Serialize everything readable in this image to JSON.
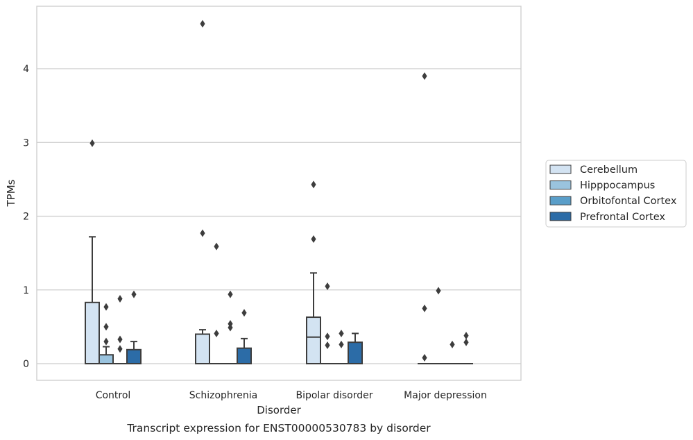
{
  "chart_data": {
    "type": "box",
    "title": "",
    "caption": "Transcript expression for ENST00000530783 by disorder",
    "xlabel": "Disorder",
    "ylabel": "TPMs",
    "ylim": [
      -0.22,
      4.85
    ],
    "yticks": [
      0,
      1,
      2,
      3,
      4
    ],
    "grid": "horizontal",
    "legend_position": "right",
    "categories": [
      "Control",
      "Schizophrenia",
      "Bipolar disorder",
      "Major depression"
    ],
    "series": [
      {
        "name": "Cerebellum",
        "color": "#d3e3f2",
        "boxes": [
          {
            "q1": 0,
            "median": 0,
            "q3": 0.83,
            "whisker_low": 0,
            "whisker_high": 1.72,
            "outliers": [
              2.99
            ]
          },
          {
            "q1": 0,
            "median": 0,
            "q3": 0.4,
            "whisker_low": 0,
            "whisker_high": 0.46,
            "outliers": [
              4.61,
              1.77
            ]
          },
          {
            "q1": 0,
            "median": 0.36,
            "q3": 0.63,
            "whisker_low": 0,
            "whisker_high": 1.23,
            "outliers": [
              2.43,
              1.69
            ]
          },
          {
            "q1": 0,
            "median": 0,
            "q3": 0,
            "whisker_low": 0,
            "whisker_high": 0,
            "outliers": [
              3.9,
              0.75,
              0.08
            ]
          }
        ]
      },
      {
        "name": "Hipppocampus",
        "color": "#9ac3de",
        "boxes": [
          {
            "q1": 0,
            "median": 0,
            "q3": 0.12,
            "whisker_low": 0,
            "whisker_high": 0.23,
            "outliers": [
              0.77,
              0.5,
              0.3
            ]
          },
          {
            "q1": 0,
            "median": 0,
            "q3": 0,
            "whisker_low": 0,
            "whisker_high": 0,
            "outliers": [
              1.59,
              0.41
            ]
          },
          {
            "q1": 0,
            "median": 0,
            "q3": 0,
            "whisker_low": 0,
            "whisker_high": 0,
            "outliers": [
              1.05,
              0.37,
              0.25
            ]
          },
          {
            "q1": 0,
            "median": 0,
            "q3": 0,
            "whisker_low": 0,
            "whisker_high": 0,
            "outliers": [
              0.99
            ]
          }
        ]
      },
      {
        "name": "Orbitofontal Cortex",
        "color": "#5a9ec9",
        "boxes": [
          {
            "q1": 0,
            "median": 0,
            "q3": 0,
            "whisker_low": 0,
            "whisker_high": 0,
            "outliers": [
              0.88,
              0.33,
              0.2
            ]
          },
          {
            "q1": 0,
            "median": 0,
            "q3": 0,
            "whisker_low": 0,
            "whisker_high": 0,
            "outliers": [
              0.94,
              0.54,
              0.49
            ]
          },
          {
            "q1": 0,
            "median": 0,
            "q3": 0,
            "whisker_low": 0,
            "whisker_high": 0,
            "outliers": [
              0.41,
              0.26
            ]
          },
          {
            "q1": 0,
            "median": 0,
            "q3": 0,
            "whisker_low": 0,
            "whisker_high": 0,
            "outliers": [
              0.26
            ]
          }
        ]
      },
      {
        "name": "Prefrontal Cortex",
        "color": "#2c6ca7",
        "boxes": [
          {
            "q1": 0,
            "median": 0,
            "q3": 0.19,
            "whisker_low": 0,
            "whisker_high": 0.3,
            "outliers": [
              0.94
            ]
          },
          {
            "q1": 0,
            "median": 0,
            "q3": 0.21,
            "whisker_low": 0,
            "whisker_high": 0.34,
            "outliers": [
              0.69
            ]
          },
          {
            "q1": 0,
            "median": 0,
            "q3": 0.29,
            "whisker_low": 0,
            "whisker_high": 0.41,
            "outliers": []
          },
          {
            "q1": 0,
            "median": 0,
            "q3": 0,
            "whisker_low": 0,
            "whisker_high": 0,
            "outliers": [
              0.38,
              0.29
            ]
          }
        ]
      }
    ]
  }
}
